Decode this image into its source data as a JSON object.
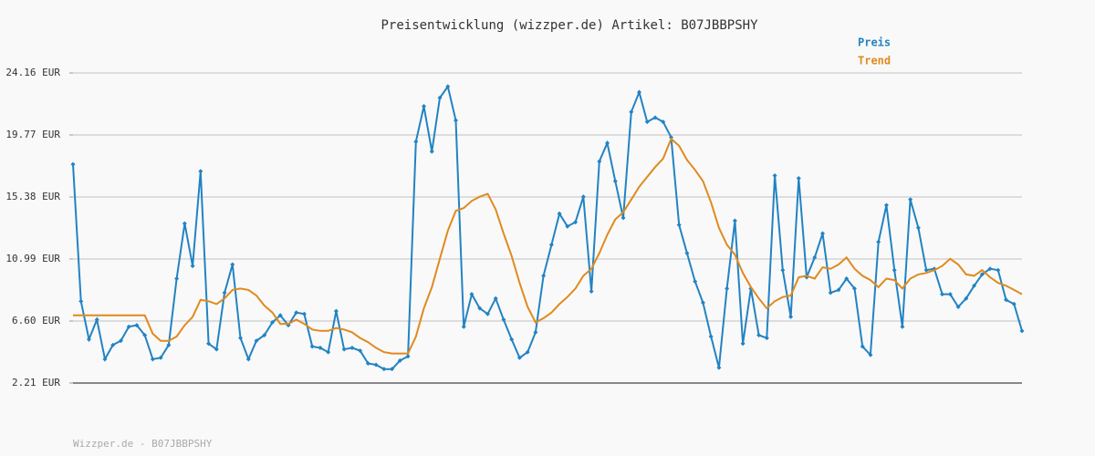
{
  "chart_data": {
    "type": "line",
    "title": "Preisentwicklung (wizzper.de) Artikel: B07JBBPSHY",
    "footer": "Wizzper.de - B07JBBPSHY",
    "categories": [
      null,
      null,
      null,
      null,
      null,
      null,
      null,
      null,
      null,
      null,
      null,
      null,
      null,
      null,
      null,
      null,
      null,
      null,
      null,
      null,
      null,
      null,
      null,
      null,
      null,
      null,
      null,
      null,
      null,
      null,
      null,
      null,
      null,
      null,
      null,
      null,
      null,
      null,
      null,
      null,
      null,
      null,
      null,
      null,
      null,
      null,
      null,
      null,
      null,
      null,
      null,
      null,
      null,
      null,
      null,
      null,
      null,
      null,
      null,
      null,
      null,
      null,
      null,
      null,
      null,
      null,
      null,
      null,
      null,
      null,
      null,
      null,
      null,
      null,
      null,
      null,
      null,
      null,
      null,
      null,
      null,
      null,
      null,
      null,
      null,
      null,
      null,
      null,
      null,
      null,
      null,
      null,
      null,
      null,
      null,
      null,
      null,
      null,
      null,
      null,
      null,
      null,
      null,
      null,
      null,
      null,
      null,
      null,
      null,
      null,
      null,
      null,
      null,
      null,
      null,
      null,
      null,
      null,
      null,
      null
    ],
    "series": [
      {
        "name": "Preis",
        "color": "#2283c3",
        "markers": true,
        "values": [
          17.7,
          8.0,
          5.3,
          6.7,
          3.9,
          4.9,
          5.2,
          6.2,
          6.3,
          5.6,
          3.9,
          4.0,
          4.9,
          9.6,
          13.5,
          10.5,
          17.2,
          5.0,
          4.6,
          8.6,
          10.6,
          5.4,
          3.9,
          5.2,
          5.6,
          6.5,
          7.0,
          6.3,
          7.2,
          7.1,
          4.8,
          4.7,
          4.4,
          7.3,
          4.6,
          4.7,
          4.5,
          3.6,
          3.5,
          3.2,
          3.2,
          3.8,
          4.1,
          19.3,
          21.8,
          18.6,
          22.4,
          23.2,
          20.8,
          6.2,
          8.5,
          7.5,
          7.1,
          8.2,
          6.7,
          5.3,
          4.0,
          4.4,
          5.8,
          9.8,
          12.0,
          14.2,
          13.3,
          13.6,
          15.4,
          8.7,
          17.9,
          19.2,
          16.5,
          13.9,
          21.4,
          22.8,
          20.7,
          21.0,
          20.7,
          19.6,
          13.4,
          11.4,
          9.4,
          7.9,
          5.5,
          3.3,
          8.9,
          13.7,
          5.0,
          8.9,
          5.6,
          5.4,
          16.9,
          10.2,
          6.9,
          16.7,
          9.7,
          11.1,
          12.8,
          8.6,
          8.8,
          9.6,
          8.9,
          4.8,
          4.2,
          12.2,
          14.8,
          10.2,
          6.2,
          15.2,
          13.2,
          10.2,
          10.3,
          8.5,
          8.5,
          7.6,
          8.2,
          9.1,
          9.9,
          10.3,
          10.2,
          8.1,
          7.8,
          5.9
        ]
      },
      {
        "name": "Trend",
        "color": "#e08a1e",
        "markers": false,
        "values": [
          7.0,
          7.0,
          7.0,
          7.0,
          7.0,
          7.0,
          7.0,
          7.0,
          7.0,
          7.0,
          5.7,
          5.2,
          5.2,
          5.5,
          6.3,
          6.9,
          8.1,
          8.0,
          7.8,
          8.2,
          8.8,
          8.9,
          8.8,
          8.4,
          7.7,
          7.2,
          6.4,
          6.4,
          6.7,
          6.4,
          6.0,
          5.9,
          5.9,
          6.1,
          6.0,
          5.8,
          5.4,
          5.1,
          4.7,
          4.4,
          4.3,
          4.3,
          4.3,
          5.5,
          7.5,
          9.0,
          11.0,
          13.0,
          14.4,
          14.6,
          15.1,
          15.4,
          15.6,
          14.5,
          12.8,
          11.2,
          9.3,
          7.6,
          6.5,
          6.8,
          7.2,
          7.8,
          8.3,
          8.9,
          9.8,
          10.3,
          11.4,
          12.7,
          13.8,
          14.3,
          15.2,
          16.1,
          16.8,
          17.5,
          18.1,
          19.5,
          19.0,
          18.0,
          17.3,
          16.5,
          15.0,
          13.2,
          12.0,
          11.3,
          10.0,
          9.0,
          8.2,
          7.5,
          8.0,
          8.3,
          8.4,
          9.7,
          9.8,
          9.6,
          10.4,
          10.3,
          10.6,
          11.1,
          10.3,
          9.8,
          9.5,
          9.0,
          9.6,
          9.5,
          8.9,
          9.6,
          9.9,
          10.0,
          10.2,
          10.5,
          11.0,
          10.6,
          9.9,
          9.8,
          10.2,
          9.7,
          9.3,
          9.1,
          8.8,
          8.5
        ]
      }
    ],
    "ylim": [
      2.21,
      24.16
    ],
    "yticks": [
      {
        "value": 2.21,
        "label": "2.21 EUR"
      },
      {
        "value": 6.6,
        "label": "6.60 EUR"
      },
      {
        "value": 10.99,
        "label": "10.99 EUR"
      },
      {
        "value": 15.38,
        "label": "15.38 EUR"
      },
      {
        "value": 19.77,
        "label": "19.77 EUR"
      },
      {
        "value": 24.16,
        "label": "24.16 EUR"
      }
    ],
    "grid": true
  }
}
